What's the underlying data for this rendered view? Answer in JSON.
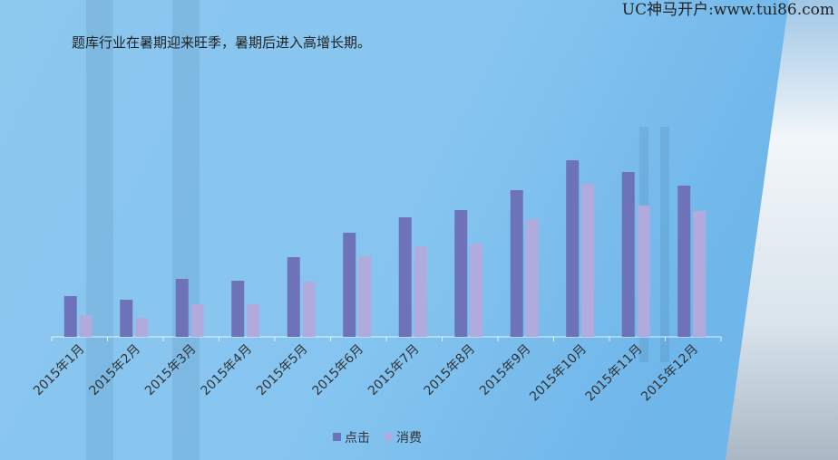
{
  "watermark": "UC神马开户:www.tui86.com",
  "chart_data": {
    "type": "bar",
    "title": "题库行业在暑期迎来旺季，暑期后进入高增长期。",
    "categories": [
      "2015年1月",
      "2015年2月",
      "2015年3月",
      "2015年4月",
      "2015年5月",
      "2015年6月",
      "2015年7月",
      "2015年8月",
      "2015年9月",
      "2015年10月",
      "2015年11月",
      "2015年12月"
    ],
    "series": [
      {
        "name": "点击",
        "color": "#6e72b8",
        "values": [
          45,
          41,
          64,
          62,
          88,
          115,
          132,
          140,
          162,
          195,
          182,
          167
        ]
      },
      {
        "name": "消费",
        "color": "#b1aadd",
        "values": [
          24,
          21,
          36,
          36,
          61,
          89,
          100,
          103,
          130,
          169,
          145,
          139
        ]
      }
    ],
    "legend": "bottom"
  }
}
